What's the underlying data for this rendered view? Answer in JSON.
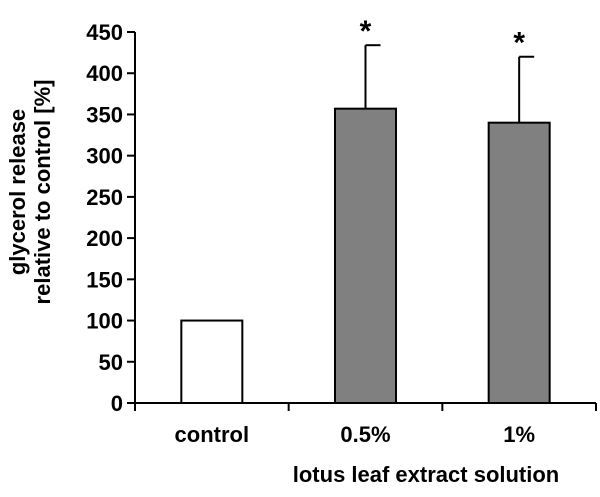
{
  "chart_data": {
    "type": "bar",
    "categories": [
      "control",
      "0.5%",
      "1%"
    ],
    "values": [
      100,
      357,
      340
    ],
    "error_upper": [
      null,
      434,
      420
    ],
    "significance": [
      "",
      "*",
      "*"
    ],
    "bar_fills": [
      "#ffffff",
      "#808080",
      "#808080"
    ],
    "ylim": [
      0,
      450
    ],
    "yticks": [
      0,
      50,
      100,
      150,
      200,
      250,
      300,
      350,
      400,
      450
    ],
    "ylabel_lines": [
      "glycerol release",
      "relative to control [%]"
    ],
    "xlabel": "lotus leaf extract solution",
    "grid": false,
    "legend": "none"
  }
}
